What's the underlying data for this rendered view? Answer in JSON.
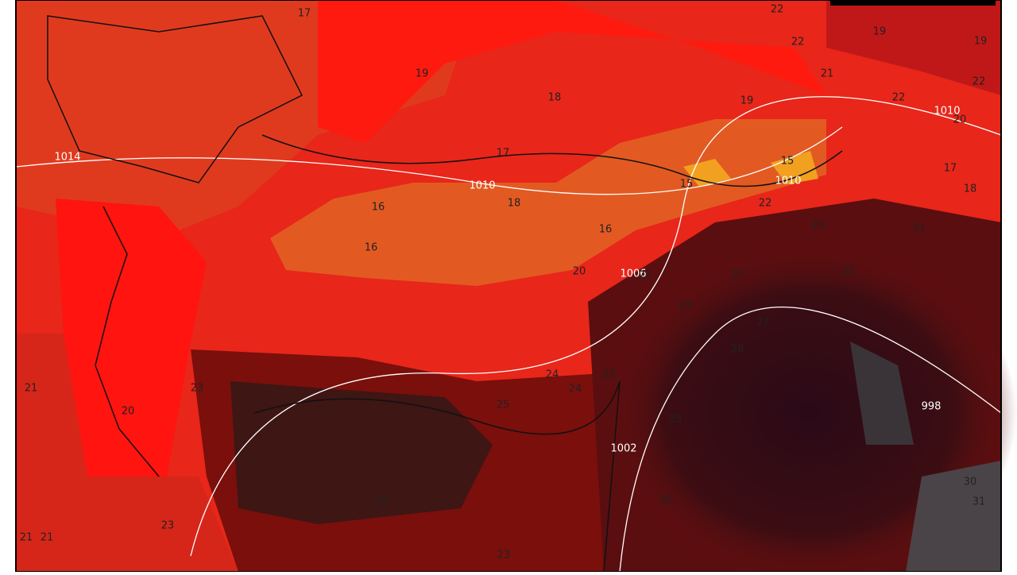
{
  "labels": [
    "17",
    "22",
    "19",
    "19",
    "22",
    "19",
    "21",
    "22",
    "18",
    "19",
    "22",
    "1010",
    "20",
    "1014",
    "17",
    "15",
    "17",
    "15",
    "1010",
    "1010",
    "18",
    "16",
    "18",
    "22",
    "23",
    "16",
    "21",
    "16",
    "20",
    "1006",
    "21",
    "25",
    "27",
    "23",
    "27",
    "28",
    "22",
    "24",
    "21",
    "23",
    "24",
    "25",
    "20",
    "998",
    "25",
    "1002",
    "30",
    "25",
    "25",
    "31",
    "23",
    "21",
    "21",
    "23"
  ]
}
